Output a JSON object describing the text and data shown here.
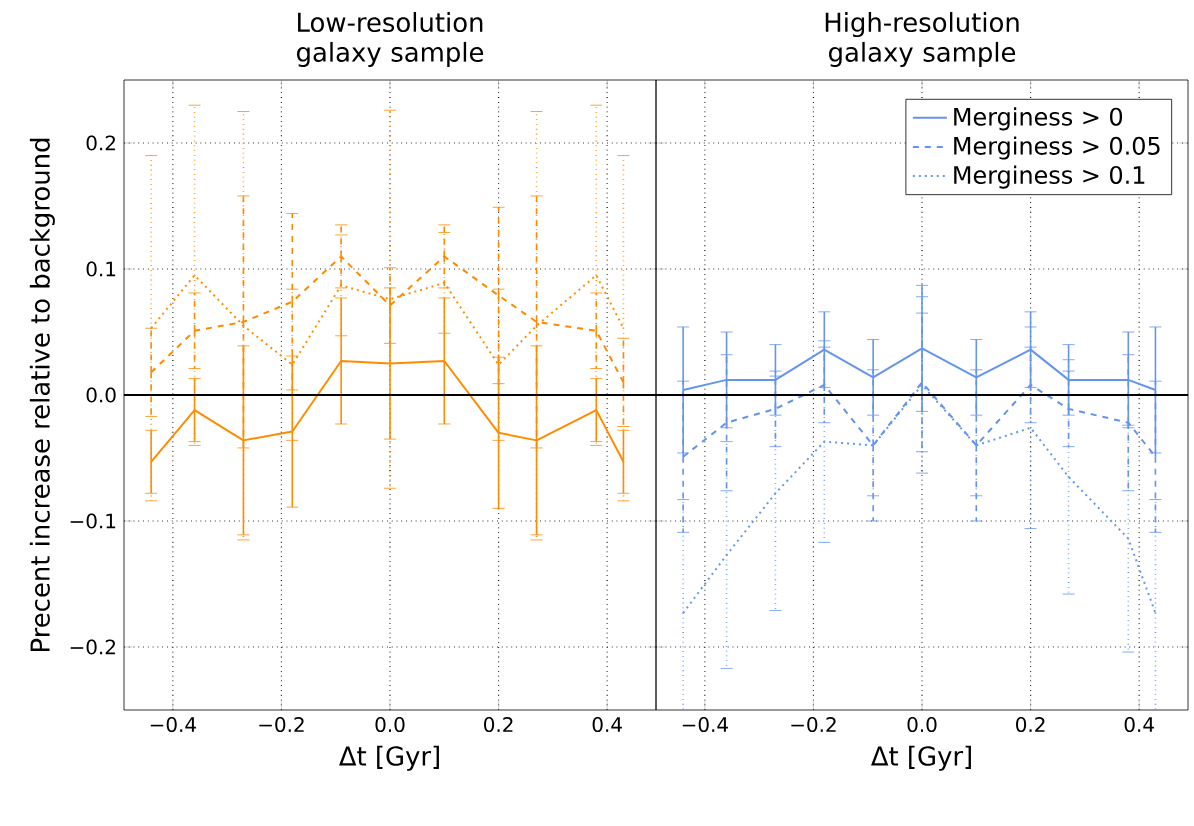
{
  "chart_data": [
    {
      "type": "line",
      "title": "Low-resolution galaxy sample",
      "xlabel": "Δt [Gyr]",
      "ylabel": "Precent increase relative to background",
      "x": [
        -0.44,
        -0.36,
        -0.27,
        -0.18,
        -0.09,
        0,
        0.1,
        0.2,
        0.27,
        0.38,
        0.43
      ],
      "xlim": [
        -0.49,
        0.49
      ],
      "ylim": [
        -0.25,
        0.25
      ],
      "xticks": [
        {
          "value": -0.4,
          "label": "−0.4"
        },
        {
          "value": -0.2,
          "label": "−0.2"
        },
        {
          "value": 0,
          "label": "0.0"
        },
        {
          "value": 0.2,
          "label": "0.2"
        },
        {
          "value": 0.4,
          "label": "0.4"
        }
      ],
      "yticks": [
        {
          "value": -0.2,
          "label": "−0.2"
        },
        {
          "value": -0.1,
          "label": "−0.1"
        },
        {
          "value": 0,
          "label": "0.0"
        },
        {
          "value": 0.1,
          "label": "0.1"
        },
        {
          "value": 0.2,
          "label": "0.2"
        }
      ],
      "grid": true,
      "marker": "none",
      "ref_lines": [
        {
          "axis": "y",
          "value": 0,
          "color": "#000000"
        }
      ],
      "series": [
        {
          "color": "#ff8c00",
          "line_style": "solid",
          "values": [
            -0.053,
            -0.012,
            -0.036,
            -0.029,
            0.027,
            0.025,
            0.027,
            -0.03,
            -0.036,
            -0.012,
            -0.053
          ],
          "errors": [
            0.025,
            0.025,
            0.075,
            0.06,
            0.05,
            0.06,
            0.05,
            0.06,
            0.075,
            0.025,
            0.025
          ]
        },
        {
          "color": "#ff8a00",
          "line_style": "dashed",
          "values": [
            0.018,
            0.051,
            0.058,
            0.074,
            0.11,
            0.071,
            0.11,
            0.079,
            0.058,
            0.051,
            0.01
          ],
          "errors": [
            0.035,
            0.03,
            0.1,
            0.07,
            0.025,
            0.03,
            0.025,
            0.07,
            0.1,
            0.03,
            0.035
          ]
        },
        {
          "color": "#ff8e00",
          "line_style": "dotted",
          "values": [
            0.053,
            0.095,
            0.055,
            0.024,
            0.087,
            0.076,
            0.089,
            0.024,
            0.055,
            0.095,
            0.053
          ],
          "errors": [
            0.137,
            0.135,
            0.17,
            0.06,
            0.04,
            0.15,
            0.04,
            0.06,
            0.17,
            0.135,
            0.137
          ]
        }
      ]
    },
    {
      "type": "line",
      "title": "High-resolution galaxy sample",
      "xlabel": "Δt [Gyr]",
      "x": [
        -0.44,
        -0.36,
        -0.27,
        -0.18,
        -0.09,
        0,
        0.1,
        0.2,
        0.27,
        0.38,
        0.43
      ],
      "xlim": [
        -0.49,
        0.49
      ],
      "ylim": [
        -0.25,
        0.25
      ],
      "xticks": [
        {
          "value": -0.4,
          "label": "−0.4"
        },
        {
          "value": -0.2,
          "label": "−0.2"
        },
        {
          "value": 0,
          "label": "0.0"
        },
        {
          "value": 0.2,
          "label": "0.2"
        },
        {
          "value": 0.4,
          "label": "0.4"
        }
      ],
      "yticks": [
        {
          "value": -0.2,
          "label": null
        },
        {
          "value": -0.1,
          "label": null
        },
        {
          "value": 0,
          "label": null
        },
        {
          "value": 0.1,
          "label": null
        },
        {
          "value": 0.2,
          "label": null
        }
      ],
      "tick_labels": "x",
      "grid": true,
      "marker": "none",
      "legend": "top right",
      "ref_lines": [
        {
          "axis": "y",
          "value": 0,
          "color": "#000000"
        }
      ],
      "series": [
        {
          "name": "Merginess > 0",
          "color": "#6495ed",
          "line_style": "solid",
          "values": [
            0.004,
            0.012,
            0.012,
            0.036,
            0.014,
            0.037,
            0.014,
            0.036,
            0.012,
            0.012,
            0.004
          ],
          "errors": [
            0.05,
            0.038,
            0.028,
            0.03,
            0.03,
            0.05,
            0.03,
            0.03,
            0.028,
            0.038,
            0.05
          ]
        },
        {
          "name": "Merginess > 0.05",
          "color": "#6493ed",
          "line_style": "dashed",
          "values": [
            -0.049,
            -0.022,
            -0.011,
            0.008,
            -0.04,
            0.01,
            -0.04,
            0.008,
            -0.011,
            -0.022,
            -0.049
          ],
          "errors": [
            0.06,
            0.054,
            0.03,
            0.03,
            0.06,
            0.055,
            0.06,
            0.03,
            0.03,
            0.054,
            0.06
          ]
        },
        {
          "name": "Merginess > 0.1",
          "color": "#6497ed",
          "line_style": "dotted",
          "values": [
            -0.173,
            -0.127,
            -0.078,
            -0.037,
            -0.04,
            0.008,
            -0.04,
            -0.026,
            -0.065,
            -0.114,
            -0.173
          ],
          "errors": [
            0.09,
            0.09,
            0.093,
            0.08,
            0.04,
            0.07,
            0.04,
            0.08,
            0.093,
            0.09,
            0.09
          ]
        }
      ]
    }
  ]
}
